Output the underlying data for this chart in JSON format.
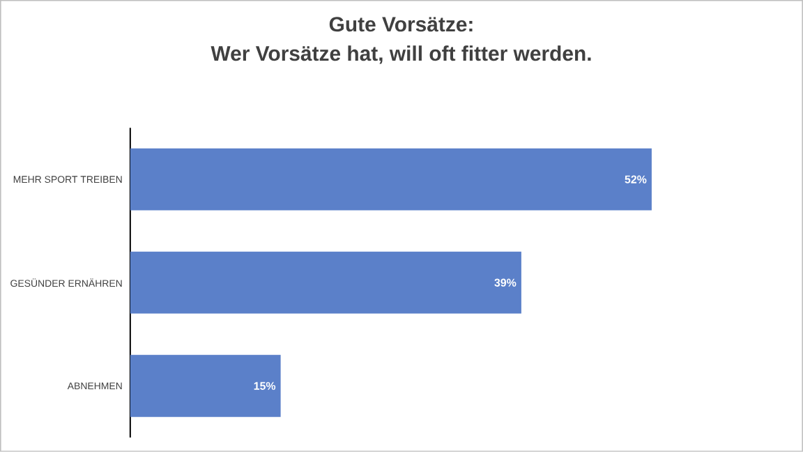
{
  "chart_data": {
    "type": "bar",
    "orientation": "horizontal",
    "title": "Gute Vorsätze:\nWer Vorsätze hat, will oft fitter werden.",
    "categories": [
      "MEHR SPORT TREIBEN",
      "GESÜNDER ERNÄHREN",
      "ABNEHMEN"
    ],
    "values": [
      52,
      39,
      15
    ],
    "value_labels": [
      "52%",
      "39%",
      "15%"
    ],
    "color": "#5b80c9"
  }
}
